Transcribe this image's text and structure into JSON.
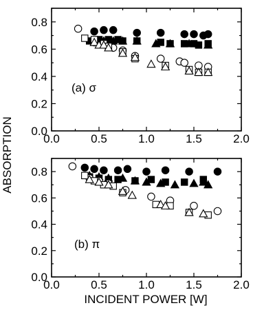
{
  "chart_data": {
    "type": "scatter",
    "xlabel": "INCIDENT POWER [W]",
    "ylabel": "ABSORPTION",
    "xlim": [
      0.0,
      2.0
    ],
    "ylim": [
      0.0,
      0.9
    ],
    "xticks": [
      "0.0",
      "0.5",
      "1.0",
      "1.5",
      "2.0"
    ],
    "yticks": [
      "0.0",
      "0.2",
      "0.4",
      "0.6",
      "0.8"
    ],
    "panels": [
      {
        "label": "(a) σ",
        "series": [
          {
            "marker": "filled-circle",
            "x": [
              0.45,
              0.55,
              0.65,
              0.9,
              1.15,
              1.4,
              1.5,
              1.6,
              1.65
            ],
            "y": [
              0.73,
              0.74,
              0.74,
              0.72,
              0.72,
              0.71,
              0.71,
              0.7,
              0.71
            ]
          },
          {
            "marker": "filled-square",
            "x": [
              0.4,
              0.5,
              0.6,
              0.7,
              0.75,
              0.9,
              1.15,
              1.25,
              1.4,
              1.5,
              1.55,
              1.65
            ],
            "y": [
              0.66,
              0.67,
              0.67,
              0.67,
              0.66,
              0.66,
              0.65,
              0.64,
              0.64,
              0.64,
              0.63,
              0.64
            ]
          },
          {
            "marker": "filled-triangle",
            "x": [
              0.45,
              0.55,
              0.65,
              0.75,
              0.9,
              1.1,
              1.25,
              1.45,
              1.65
            ],
            "y": [
              0.65,
              0.66,
              0.66,
              0.66,
              0.66,
              0.64,
              0.64,
              0.64,
              0.63
            ]
          },
          {
            "marker": "open-circle",
            "x": [
              0.28,
              0.45,
              0.55,
              0.65,
              0.75,
              0.88,
              1.15,
              1.35,
              1.4,
              1.55,
              1.65
            ],
            "y": [
              0.75,
              0.65,
              0.64,
              0.61,
              0.59,
              0.55,
              0.53,
              0.51,
              0.5,
              0.48,
              0.47
            ]
          },
          {
            "marker": "open-square",
            "x": [
              0.35,
              0.45,
              0.55,
              0.6,
              0.75,
              0.88,
              1.2,
              1.45,
              1.55,
              1.65
            ],
            "y": [
              0.68,
              0.67,
              0.64,
              0.62,
              0.58,
              0.53,
              0.48,
              0.45,
              0.43,
              0.43
            ]
          },
          {
            "marker": "open-triangle",
            "x": [
              0.45,
              0.5,
              0.55,
              0.6,
              0.75,
              0.88,
              1.05,
              1.2,
              1.45,
              1.55,
              1.65
            ],
            "y": [
              0.65,
              0.63,
              0.63,
              0.61,
              0.57,
              0.54,
              0.49,
              0.47,
              0.44,
              0.43,
              0.43
            ]
          }
        ]
      },
      {
        "label": "(b) π",
        "series": [
          {
            "marker": "filled-circle",
            "x": [
              0.35,
              0.45,
              0.55,
              0.7,
              0.8,
              1.0,
              1.2,
              1.45,
              1.75
            ],
            "y": [
              0.83,
              0.82,
              0.81,
              0.81,
              0.82,
              0.8,
              0.81,
              0.8,
              0.8
            ]
          },
          {
            "marker": "filled-square",
            "x": [
              0.4,
              0.5,
              0.6,
              0.7,
              0.88,
              1.05,
              1.2,
              1.4,
              1.6
            ],
            "y": [
              0.76,
              0.75,
              0.74,
              0.74,
              0.73,
              0.74,
              0.72,
              0.72,
              0.74
            ]
          },
          {
            "marker": "filled-triangle",
            "x": [
              0.4,
              0.5,
              0.6,
              0.75,
              0.88,
              1.0,
              1.15,
              1.3,
              1.5,
              1.6,
              1.65
            ],
            "y": [
              0.77,
              0.76,
              0.75,
              0.75,
              0.73,
              0.72,
              0.71,
              0.7,
              0.71,
              0.72,
              0.7
            ]
          },
          {
            "marker": "open-circle",
            "x": [
              0.22,
              0.4,
              0.5,
              0.6,
              0.78,
              1.05,
              1.25,
              1.5,
              1.75
            ],
            "y": [
              0.84,
              0.75,
              0.73,
              0.71,
              0.66,
              0.61,
              0.58,
              0.54,
              0.5
            ]
          },
          {
            "marker": "open-square",
            "x": [
              0.35,
              0.45,
              0.55,
              0.65,
              0.75,
              1.1,
              1.25,
              1.45,
              1.65
            ],
            "y": [
              0.77,
              0.73,
              0.7,
              0.69,
              0.64,
              0.55,
              0.54,
              0.49,
              0.47
            ]
          },
          {
            "marker": "open-triangle",
            "x": [
              0.4,
              0.5,
              0.6,
              0.75,
              0.85,
              1.15,
              1.2,
              1.45,
              1.6
            ],
            "y": [
              0.74,
              0.72,
              0.7,
              0.65,
              0.62,
              0.55,
              0.54,
              0.49,
              0.48
            ]
          }
        ]
      }
    ]
  }
}
